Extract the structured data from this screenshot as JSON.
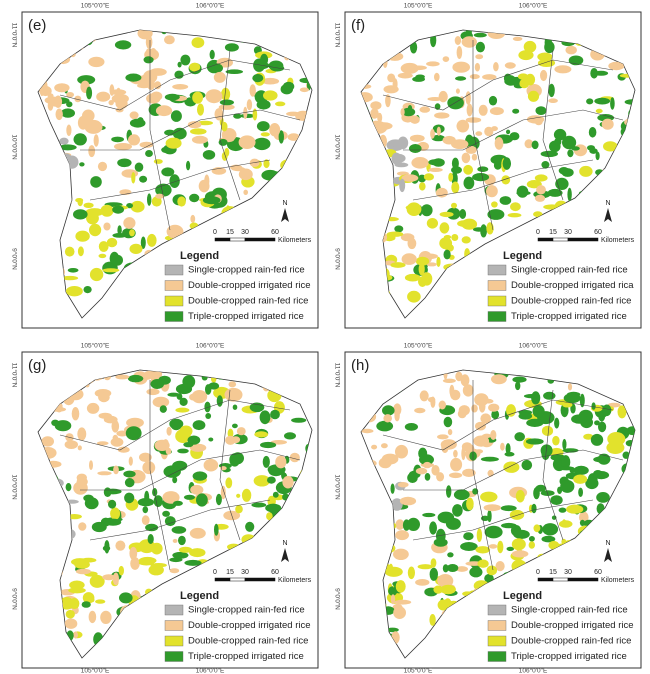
{
  "panels": [
    {
      "label": "(e)",
      "top_lon": [
        "105°0'0\"E",
        "106°0'0\"E"
      ],
      "lat": [
        "11°0'0\"N",
        "10°0'0\"N",
        "9°0'0\"N"
      ],
      "scale": {
        "ticks": [
          0,
          15,
          30,
          60
        ],
        "unit": "Kilometers"
      },
      "north": "N",
      "legend": {
        "title": "Legend",
        "items": [
          {
            "label": "Single-cropped rain-fed rice",
            "color": "#b4b4b4"
          },
          {
            "label": "Double-cropped irrigated rice",
            "color": "#f5c994"
          },
          {
            "label": "Double-cropped rain-fed rice",
            "color": "#e2e22c"
          },
          {
            "label": "Triple-cropped irrigated rice",
            "color": "#2f9a2b"
          }
        ]
      }
    },
    {
      "label": "(f)",
      "top_lon": [
        "105°0'0\"E",
        "106°0'0\"E"
      ],
      "lat": [
        "11°0'0\"N",
        "10°0'0\"N",
        "9°0'0\"N"
      ],
      "scale": {
        "ticks": [
          0,
          15,
          30,
          60
        ],
        "unit": "Kilometers"
      },
      "north": "N",
      "legend": {
        "title": "Legend",
        "items": [
          {
            "label": "Single-cropped rain-fed rice",
            "color": "#b4b4b4"
          },
          {
            "label": "Double-cropped irrigated rica",
            "color": "#f5c994"
          },
          {
            "label": "Double-cropped rain-fed rice",
            "color": "#e2e22c"
          },
          {
            "label": "Triple-cropped irrigated rice",
            "color": "#2f9a2b"
          }
        ]
      }
    },
    {
      "label": "(g)",
      "top_lon": [
        "105°0'0\"E",
        "106°0'0\"E"
      ],
      "bottom_lon": [
        "105°0'0\"E",
        "106°0'0\"E"
      ],
      "lat": [
        "11°0'0\"N",
        "10°0'0\"N",
        "9°0'0\"N"
      ],
      "scale": {
        "ticks": [
          0,
          15,
          30,
          60
        ],
        "unit": "Kilometers"
      },
      "north": "N",
      "legend": {
        "title": "Legend",
        "items": [
          {
            "label": "Single-cropped rain-fed rice",
            "color": "#b4b4b4"
          },
          {
            "label": "Double-cropped irrigated rice",
            "color": "#f5c994"
          },
          {
            "label": "Double-cropped rain-fed rice",
            "color": "#e2e22c"
          },
          {
            "label": "Triple-cropped irrigated rice",
            "color": "#2f9a2b"
          }
        ]
      }
    },
    {
      "label": "(h)",
      "top_lon": [
        "105°0'0\"E",
        "106°0'0\"E"
      ],
      "bottom_lon": [
        "105°0'0\"E",
        "106°0'0\"E"
      ],
      "lat": [
        "11°0'0\"N",
        "10°0'0\"N",
        "9°0'0\"N"
      ],
      "scale": {
        "ticks": [
          0,
          15,
          30,
          60
        ],
        "unit": "Kilometers"
      },
      "north": "N",
      "legend": {
        "title": "Legend",
        "items": [
          {
            "label": "Single-cropped rain-fed rice",
            "color": "#b4b4b4"
          },
          {
            "label": "Double-cropped irrigated rice",
            "color": "#f5c994"
          },
          {
            "label": "Double-cropped rain-fed rice",
            "color": "#e2e22c"
          },
          {
            "label": "Triple-cropped irrigated rice",
            "color": "#2f9a2b"
          }
        ]
      }
    }
  ]
}
